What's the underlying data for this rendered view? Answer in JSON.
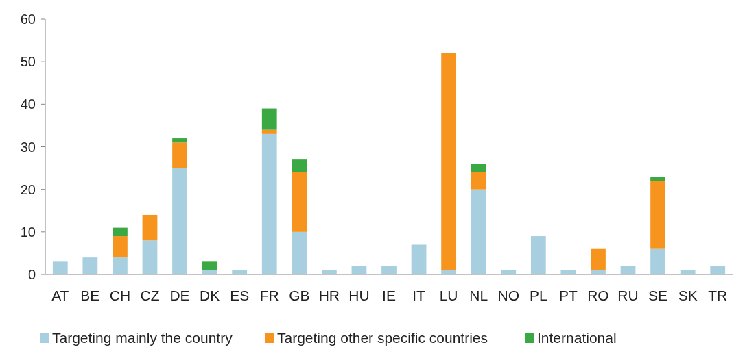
{
  "chart_data": {
    "type": "bar",
    "stacked": true,
    "categories": [
      "AT",
      "BE",
      "CH",
      "CZ",
      "DE",
      "DK",
      "ES",
      "FR",
      "GB",
      "HR",
      "HU",
      "IE",
      "IT",
      "LU",
      "NL",
      "NO",
      "PL",
      "PT",
      "RO",
      "RU",
      "SE",
      "SK",
      "TR"
    ],
    "series": [
      {
        "name": "Targeting mainly the country",
        "color": "#a8cfe0",
        "values": [
          3,
          4,
          4,
          8,
          25,
          1,
          1,
          33,
          10,
          1,
          2,
          2,
          7,
          1,
          20,
          1,
          9,
          1,
          1,
          2,
          6,
          1,
          2
        ]
      },
      {
        "name": "Targeting other specific countries",
        "color": "#f7941d",
        "values": [
          0,
          0,
          5,
          6,
          6,
          0,
          0,
          1,
          14,
          0,
          0,
          0,
          0,
          51,
          4,
          0,
          0,
          0,
          5,
          0,
          16,
          0,
          0
        ]
      },
      {
        "name": "International",
        "color": "#3aa843",
        "values": [
          0,
          0,
          2,
          0,
          1,
          2,
          0,
          5,
          3,
          0,
          0,
          0,
          0,
          0,
          2,
          0,
          0,
          0,
          0,
          0,
          1,
          0,
          0
        ]
      }
    ],
    "ylim": [
      0,
      60
    ],
    "yticks": [
      0,
      10,
      20,
      30,
      40,
      50,
      60
    ],
    "grid": false,
    "legend": "bottom"
  }
}
